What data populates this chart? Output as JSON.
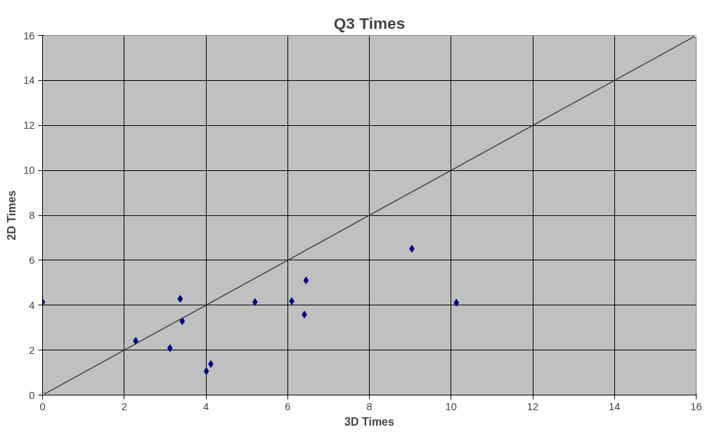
{
  "chart_data": {
    "type": "scatter",
    "title": "Q3 Times",
    "xlabel": "3D Times",
    "ylabel": "2D Times",
    "xlim": [
      0,
      16
    ],
    "ylim": [
      0,
      16
    ],
    "xticks": [
      0,
      2,
      4,
      6,
      8,
      10,
      12,
      14,
      16
    ],
    "yticks": [
      0,
      2,
      4,
      6,
      8,
      10,
      12,
      14,
      16
    ],
    "grid": true,
    "series": [
      {
        "marker": "diamond",
        "color": "#000080",
        "x": [
          0,
          2.28,
          3.12,
          3.37,
          3.42,
          4.01,
          4.12,
          5.2,
          6.1,
          6.41,
          6.45,
          9.04,
          10.13
        ],
        "values": [
          4.14,
          2.41,
          2.09,
          4.28,
          3.29,
          1.06,
          1.38,
          4.14,
          4.18,
          3.58,
          5.1,
          6.51,
          4.11
        ]
      },
      {
        "type": "line",
        "marker": "circle",
        "color": "#333333",
        "x": [
          0,
          16
        ],
        "values": [
          0,
          16
        ]
      }
    ]
  }
}
